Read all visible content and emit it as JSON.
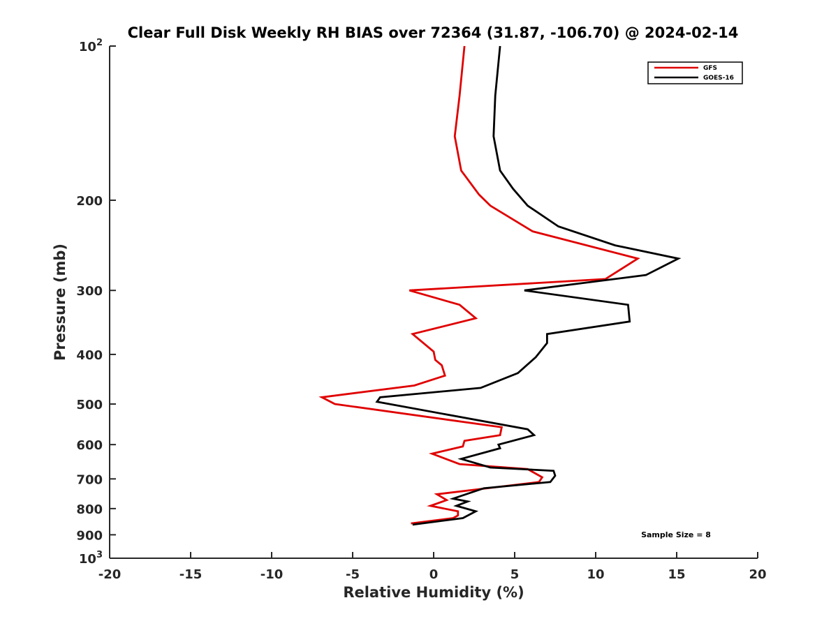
{
  "chart_data": {
    "type": "line",
    "title": "Clear Full Disk Weekly RH BIAS over 72364 (31.87, -106.70) @ 2024-02-14",
    "xlabel": "Relative Humidity (%)",
    "ylabel": "Pressure (mb)",
    "xlim": [
      -20,
      20
    ],
    "ylim": [
      100,
      1000
    ],
    "y_scale": "log",
    "y_reversed": true,
    "x_ticks": [
      "-20",
      "-15",
      "-10",
      "-5",
      "0",
      "5",
      "10",
      "15",
      "20"
    ],
    "y_ticks": [
      {
        "value": 100,
        "base": "10",
        "exp": "2"
      },
      {
        "value": 200,
        "label": "200"
      },
      {
        "value": 300,
        "label": "300"
      },
      {
        "value": 400,
        "label": "400"
      },
      {
        "value": 500,
        "label": "500"
      },
      {
        "value": 600,
        "label": "600"
      },
      {
        "value": 700,
        "label": "700"
      },
      {
        "value": 800,
        "label": "800"
      },
      {
        "value": 900,
        "label": "900"
      },
      {
        "value": 1000,
        "base": "10",
        "exp": "3"
      }
    ],
    "grid": false,
    "legend_position": "top-right",
    "series": [
      {
        "name": "GFS",
        "color": "#e00000",
        "points": [
          [
            1.9,
            100
          ],
          [
            1.6,
            125
          ],
          [
            1.3,
            150
          ],
          [
            1.7,
            175
          ],
          [
            2.8,
            195
          ],
          [
            3.5,
            205
          ],
          [
            6.1,
            230
          ],
          [
            12.6,
            260
          ],
          [
            10.6,
            285
          ],
          [
            -1.5,
            300
          ],
          [
            1.6,
            320
          ],
          [
            2.6,
            340
          ],
          [
            -1.3,
            365
          ],
          [
            0.0,
            395
          ],
          [
            0.1,
            410
          ],
          [
            0.5,
            420
          ],
          [
            0.7,
            440
          ],
          [
            -1.2,
            460
          ],
          [
            -6.9,
            485
          ],
          [
            -6.1,
            500
          ],
          [
            4.2,
            555
          ],
          [
            4.1,
            575
          ],
          [
            1.9,
            590
          ],
          [
            1.8,
            605
          ],
          [
            -0.1,
            625
          ],
          [
            1.6,
            655
          ],
          [
            5.8,
            670
          ],
          [
            6.7,
            695
          ],
          [
            6.5,
            710
          ],
          [
            0.2,
            750
          ],
          [
            0.8,
            770
          ],
          [
            -0.2,
            790
          ],
          [
            1.5,
            810
          ],
          [
            1.5,
            825
          ],
          [
            1.2,
            835
          ],
          [
            -1.4,
            855
          ]
        ]
      },
      {
        "name": "GOES-16",
        "color": "#000000",
        "points": [
          [
            4.1,
            100
          ],
          [
            3.8,
            125
          ],
          [
            3.7,
            150
          ],
          [
            4.1,
            175
          ],
          [
            4.9,
            190
          ],
          [
            5.8,
            205
          ],
          [
            7.7,
            225
          ],
          [
            11.2,
            245
          ],
          [
            15.1,
            260
          ],
          [
            13.1,
            280
          ],
          [
            5.6,
            300
          ],
          [
            12.0,
            320
          ],
          [
            12.1,
            345
          ],
          [
            7.0,
            365
          ],
          [
            7.0,
            380
          ],
          [
            6.3,
            405
          ],
          [
            5.2,
            435
          ],
          [
            2.9,
            465
          ],
          [
            -3.3,
            485
          ],
          [
            -3.5,
            495
          ],
          [
            5.8,
            560
          ],
          [
            6.2,
            575
          ],
          [
            4.0,
            600
          ],
          [
            4.1,
            610
          ],
          [
            1.7,
            640
          ],
          [
            3.5,
            665
          ],
          [
            7.4,
            675
          ],
          [
            7.5,
            690
          ],
          [
            7.2,
            710
          ],
          [
            3.1,
            730
          ],
          [
            1.2,
            765
          ],
          [
            2.1,
            775
          ],
          [
            1.4,
            790
          ],
          [
            2.6,
            810
          ],
          [
            1.8,
            835
          ],
          [
            -1.3,
            860
          ]
        ]
      }
    ],
    "annotation": "Sample Size = 8"
  }
}
